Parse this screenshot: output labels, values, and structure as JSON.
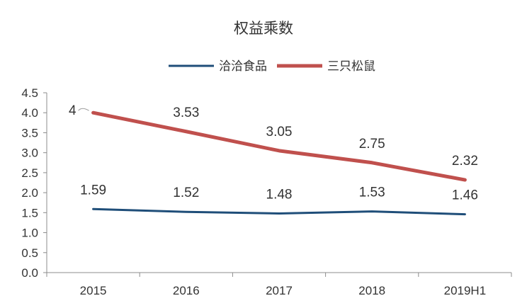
{
  "chart_data": {
    "type": "line",
    "title": "权益乘数",
    "categories": [
      "2015",
      "2016",
      "2017",
      "2018",
      "2019H1"
    ],
    "series": [
      {
        "name": "洽洽食品",
        "color": "#1f4e79",
        "values": [
          1.59,
          1.52,
          1.48,
          1.53,
          1.46
        ],
        "labels": [
          "1.59",
          "1.52",
          "1.48",
          "1.53",
          "1.46"
        ]
      },
      {
        "name": "三只松鼠",
        "color": "#c0504d",
        "values": [
          4,
          3.53,
          3.05,
          2.75,
          2.32
        ],
        "labels": [
          "4",
          "3.53",
          "3.05",
          "2.75",
          "2.32"
        ]
      }
    ],
    "ylim": [
      0,
      4.5
    ],
    "yticks": [
      "0.0",
      "0.5",
      "1.0",
      "1.5",
      "2.0",
      "2.5",
      "3.0",
      "3.5",
      "4.0",
      "4.5"
    ],
    "ytick_values": [
      0,
      0.5,
      1,
      1.5,
      2,
      2.5,
      3,
      3.5,
      4,
      4.5
    ],
    "grid": false,
    "legend_position": "top"
  }
}
